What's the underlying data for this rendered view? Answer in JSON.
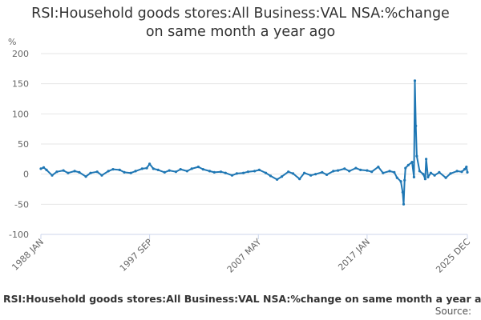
{
  "chart_data": {
    "type": "line",
    "title_line1": "RSI:Household goods stores:All Business:VAL NSA:%change",
    "title_line2": "on same month a year ago",
    "ylabel": "%",
    "ylim": [
      -100,
      200
    ],
    "yticks": [
      -100,
      -50,
      0,
      50,
      100,
      150,
      200
    ],
    "xlim": [
      "1988-01",
      "2025-12"
    ],
    "xtick_labels": [
      {
        "label": "1988 JAN",
        "date": "1988-01"
      },
      {
        "label": "1997 SEP",
        "date": "1997-09"
      },
      {
        "label": "2007 MAY",
        "date": "2007-05"
      },
      {
        "label": "2017 JAN",
        "date": "2017-01"
      },
      {
        "label": "2025 DEC",
        "date": "2025-12"
      }
    ],
    "grid": true,
    "series_color": "#1f77b4",
    "series": [
      {
        "points": [
          [
            "1988-01",
            9
          ],
          [
            "1988-04",
            11
          ],
          [
            "1988-07",
            7
          ],
          [
            "1989-01",
            -2
          ],
          [
            "1989-06",
            4
          ],
          [
            "1990-01",
            6
          ],
          [
            "1990-06",
            2
          ],
          [
            "1991-01",
            5
          ],
          [
            "1991-06",
            3
          ],
          [
            "1992-01",
            -4
          ],
          [
            "1992-06",
            2
          ],
          [
            "1993-01",
            4
          ],
          [
            "1993-06",
            -2
          ],
          [
            "1994-01",
            5
          ],
          [
            "1994-06",
            8
          ],
          [
            "1995-01",
            7
          ],
          [
            "1995-06",
            3
          ],
          [
            "1996-01",
            2
          ],
          [
            "1996-06",
            5
          ],
          [
            "1997-01",
            9
          ],
          [
            "1997-06",
            10
          ],
          [
            "1997-09",
            17
          ],
          [
            "1998-01",
            9
          ],
          [
            "1998-06",
            7
          ],
          [
            "1999-01",
            3
          ],
          [
            "1999-06",
            6
          ],
          [
            "2000-01",
            4
          ],
          [
            "2000-06",
            8
          ],
          [
            "2001-01",
            5
          ],
          [
            "2001-06",
            9
          ],
          [
            "2002-01",
            12
          ],
          [
            "2002-06",
            8
          ],
          [
            "2003-01",
            5
          ],
          [
            "2003-06",
            3
          ],
          [
            "2004-01",
            4
          ],
          [
            "2004-06",
            2
          ],
          [
            "2005-01",
            -2
          ],
          [
            "2005-06",
            1
          ],
          [
            "2006-01",
            2
          ],
          [
            "2006-06",
            4
          ],
          [
            "2007-01",
            5
          ],
          [
            "2007-06",
            7
          ],
          [
            "2008-01",
            2
          ],
          [
            "2008-06",
            -3
          ],
          [
            "2009-01",
            -9
          ],
          [
            "2009-06",
            -4
          ],
          [
            "2010-01",
            4
          ],
          [
            "2010-06",
            1
          ],
          [
            "2011-01",
            -8
          ],
          [
            "2011-06",
            2
          ],
          [
            "2012-01",
            -2
          ],
          [
            "2012-06",
            0
          ],
          [
            "2013-01",
            3
          ],
          [
            "2013-06",
            -1
          ],
          [
            "2014-01",
            5
          ],
          [
            "2014-06",
            6
          ],
          [
            "2015-01",
            9
          ],
          [
            "2015-06",
            5
          ],
          [
            "2016-01",
            10
          ],
          [
            "2016-06",
            7
          ],
          [
            "2017-01",
            6
          ],
          [
            "2017-06",
            4
          ],
          [
            "2018-01",
            12
          ],
          [
            "2018-06",
            2
          ],
          [
            "2019-01",
            5
          ],
          [
            "2019-06",
            3
          ],
          [
            "2019-09",
            -6
          ],
          [
            "2020-01",
            -12
          ],
          [
            "2020-03",
            -30
          ],
          [
            "2020-04",
            -50
          ],
          [
            "2020-05",
            -10
          ],
          [
            "2020-06",
            10
          ],
          [
            "2020-09",
            15
          ],
          [
            "2021-01",
            20
          ],
          [
            "2021-03",
            -5
          ],
          [
            "2021-04",
            155
          ],
          [
            "2021-05",
            80
          ],
          [
            "2021-06",
            30
          ],
          [
            "2021-09",
            5
          ],
          [
            "2022-01",
            0
          ],
          [
            "2022-03",
            -8
          ],
          [
            "2022-04",
            25
          ],
          [
            "2022-06",
            -5
          ],
          [
            "2022-09",
            2
          ],
          [
            "2023-01",
            -2
          ],
          [
            "2023-06",
            3
          ],
          [
            "2024-01",
            -6
          ],
          [
            "2024-06",
            1
          ],
          [
            "2025-01",
            5
          ],
          [
            "2025-06",
            4
          ],
          [
            "2025-09",
            8
          ],
          [
            "2025-11",
            12
          ],
          [
            "2025-12",
            3
          ]
        ]
      }
    ]
  },
  "footer": {
    "caption": "RSI:Household goods stores:All Business:VAL NSA:%change on same month a year ago",
    "source": "Source:"
  }
}
